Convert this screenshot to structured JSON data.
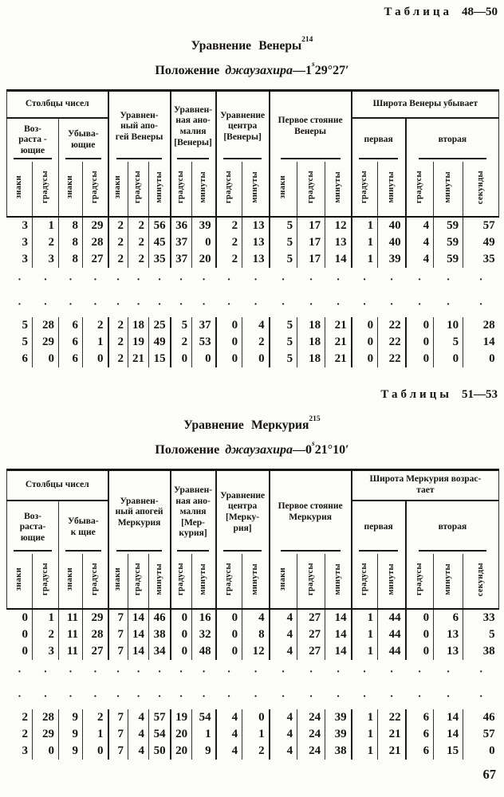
{
  "page_number": "67",
  "sections": [
    {
      "caption_word": "Таблица",
      "caption_nums": "48—50",
      "title": "Уравнение Венеры",
      "title_sup": "214",
      "subtitle_prefix": "Положение",
      "subtitle_term": "джаузахира",
      "subtitle_dash": "—",
      "subtitle_base": "1",
      "subtitle_sup": "s",
      "subtitle_rest": "29°27′",
      "header": {
        "col_numbers_label": "Столбцы чисел",
        "ascending": "Воз-\nраста -\nющие",
        "descending": "Убыва-\nющие",
        "group_apogee": "Уравнен-\nный апо-\nгей Венеры",
        "group_anomaly": "Уравнен-\nная ано-\nмалия\n[Венеры]",
        "group_center": "Уравнение\nцентра\n[Венеры]",
        "group_station": "Первое стояние\nВенеры",
        "group_latitude": "Широта Венеры  убывает",
        "lat_first": "первая",
        "lat_second": "вторая",
        "units": [
          "знаки",
          "градусы",
          "знаки",
          "градусы",
          "знаки",
          "градусы",
          "минуты",
          "градусы",
          "минуты",
          "градусы",
          "минуты",
          "знаки",
          "градусы",
          "минуты",
          "градусы",
          "минуты",
          "градусы",
          "минуты",
          "секунды"
        ]
      },
      "body": {
        "dots_char": "·",
        "rows_top": [
          [
            "3",
            "1",
            "8",
            "29",
            "2",
            "2",
            "56",
            "36",
            "39",
            "2",
            "13",
            "5",
            "17",
            "12",
            "1",
            "40",
            "4",
            "59",
            "57"
          ],
          [
            "3",
            "2",
            "8",
            "28",
            "2",
            "2",
            "45",
            "37",
            "0",
            "2",
            "13",
            "5",
            "17",
            "13",
            "1",
            "40",
            "4",
            "59",
            "49"
          ],
          [
            "3",
            "3",
            "8",
            "27",
            "2",
            "2",
            "35",
            "37",
            "20",
            "2",
            "13",
            "5",
            "17",
            "14",
            "1",
            "39",
            "4",
            "59",
            "35"
          ]
        ],
        "rows_bottom": [
          [
            "5",
            "28",
            "6",
            "2",
            "2",
            "18",
            "25",
            "5",
            "37",
            "0",
            "4",
            "5",
            "18",
            "21",
            "0",
            "22",
            "0",
            "10",
            "28"
          ],
          [
            "5",
            "29",
            "6",
            "1",
            "2",
            "19",
            "49",
            "2",
            "53",
            "0",
            "2",
            "5",
            "18",
            "21",
            "0",
            "22",
            "0",
            "5",
            "14"
          ],
          [
            "6",
            "0",
            "6",
            "0",
            "2",
            "21",
            "15",
            "0",
            "0",
            "0",
            "0",
            "5",
            "18",
            "21",
            "0",
            "22",
            "0",
            "0",
            "0"
          ]
        ]
      }
    },
    {
      "caption_word": "Таблицы",
      "caption_nums": "51—53",
      "title": "Уравнение Меркурия",
      "title_sup": "215",
      "subtitle_prefix": "Положение",
      "subtitle_term": "джаузахира",
      "subtitle_dash": "—",
      "subtitle_base": "0",
      "subtitle_sup": "s",
      "subtitle_rest": "21°10′",
      "header": {
        "col_numbers_label": "Столбцы чисел",
        "ascending": "Воз-\nраста-\nющие",
        "descending": "Убыва-\nк щие",
        "group_apogee": "Уравнен-\nный апогей\nМеркурия",
        "group_anomaly": "Уравнен-\nная ано-\nмалия\n[Мер-\nкурия]",
        "group_center": "Уравнение\nцентра\n[Мерку-\nрия]",
        "group_station": "Первое стояние\nМеркурия",
        "group_latitude": "Широта Меркурия возрас-\nтает",
        "lat_first": "первая",
        "lat_second": "вторая",
        "units": [
          "знаки",
          "градусы",
          "знаки",
          "градусы",
          "знаки",
          "градусы",
          "минуты",
          "градусы",
          "минуты",
          "градусы",
          "минуты",
          "знаки",
          "градусы",
          "минуты",
          "градусы",
          "минуты",
          "градусы",
          "минуты",
          "секунды"
        ]
      },
      "body": {
        "dots_char": "·",
        "rows_top": [
          [
            "0",
            "1",
            "11",
            "29",
            "7",
            "14",
            "46",
            "0",
            "16",
            "0",
            "4",
            "4",
            "27",
            "14",
            "1",
            "44",
            "0",
            "6",
            "33"
          ],
          [
            "0",
            "2",
            "11",
            "28",
            "7",
            "14",
            "38",
            "0",
            "32",
            "0",
            "8",
            "4",
            "27",
            "14",
            "1",
            "44",
            "0",
            "13",
            "5"
          ],
          [
            "0",
            "3",
            "11",
            "27",
            "7",
            "14",
            "34",
            "0",
            "48",
            "0",
            "12",
            "4",
            "27",
            "14",
            "1",
            "44",
            "0",
            "13",
            "38"
          ]
        ],
        "rows_bottom": [
          [
            "2",
            "28",
            "9",
            "2",
            "7",
            "4",
            "57",
            "19",
            "54",
            "4",
            "0",
            "4",
            "24",
            "39",
            "1",
            "22",
            "6",
            "14",
            "46"
          ],
          [
            "2",
            "29",
            "9",
            "1",
            "7",
            "4",
            "54",
            "20",
            "1",
            "4",
            "1",
            "4",
            "24",
            "39",
            "1",
            "21",
            "6",
            "14",
            "57"
          ],
          [
            "3",
            "0",
            "9",
            "0",
            "7",
            "4",
            "50",
            "20",
            "9",
            "4",
            "2",
            "4",
            "24",
            "38",
            "1",
            "21",
            "6",
            "15",
            "0"
          ]
        ]
      }
    }
  ]
}
